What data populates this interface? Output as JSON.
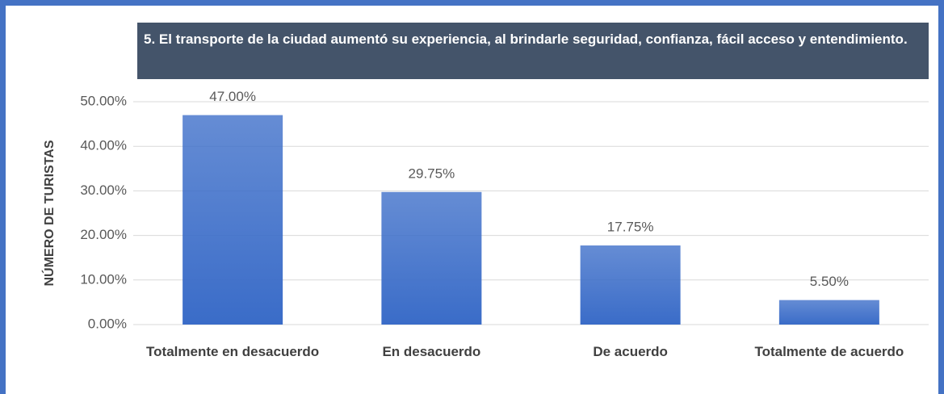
{
  "chart_data": {
    "type": "bar",
    "title": "5. El transporte de la ciudad aumentó su experiencia, al brindarle seguridad, confianza, fácil acceso y entendimiento.",
    "y_label": "NÚMERO DE TURISTAS",
    "categories": [
      "Totalmente en desacuerdo",
      "En desacuerdo",
      "De acuerdo",
      "Totalmente de acuerdo"
    ],
    "values": [
      47,
      29.75,
      17.75,
      5.5
    ],
    "value_labels": [
      "47.00%",
      "29.75%",
      "17.75%",
      "5.50%"
    ],
    "color": "#3a6cc8",
    "ylim": [
      0,
      50
    ],
    "yticks": [
      {
        "value": 0,
        "label": "0.00%"
      },
      {
        "value": 10,
        "label": "10.00%"
      },
      {
        "value": 20,
        "label": "20.00%"
      },
      {
        "value": 30,
        "label": "30.00%"
      },
      {
        "value": 40,
        "label": "40.00%"
      },
      {
        "value": 50,
        "label": "50.00%"
      }
    ],
    "grid": true
  }
}
